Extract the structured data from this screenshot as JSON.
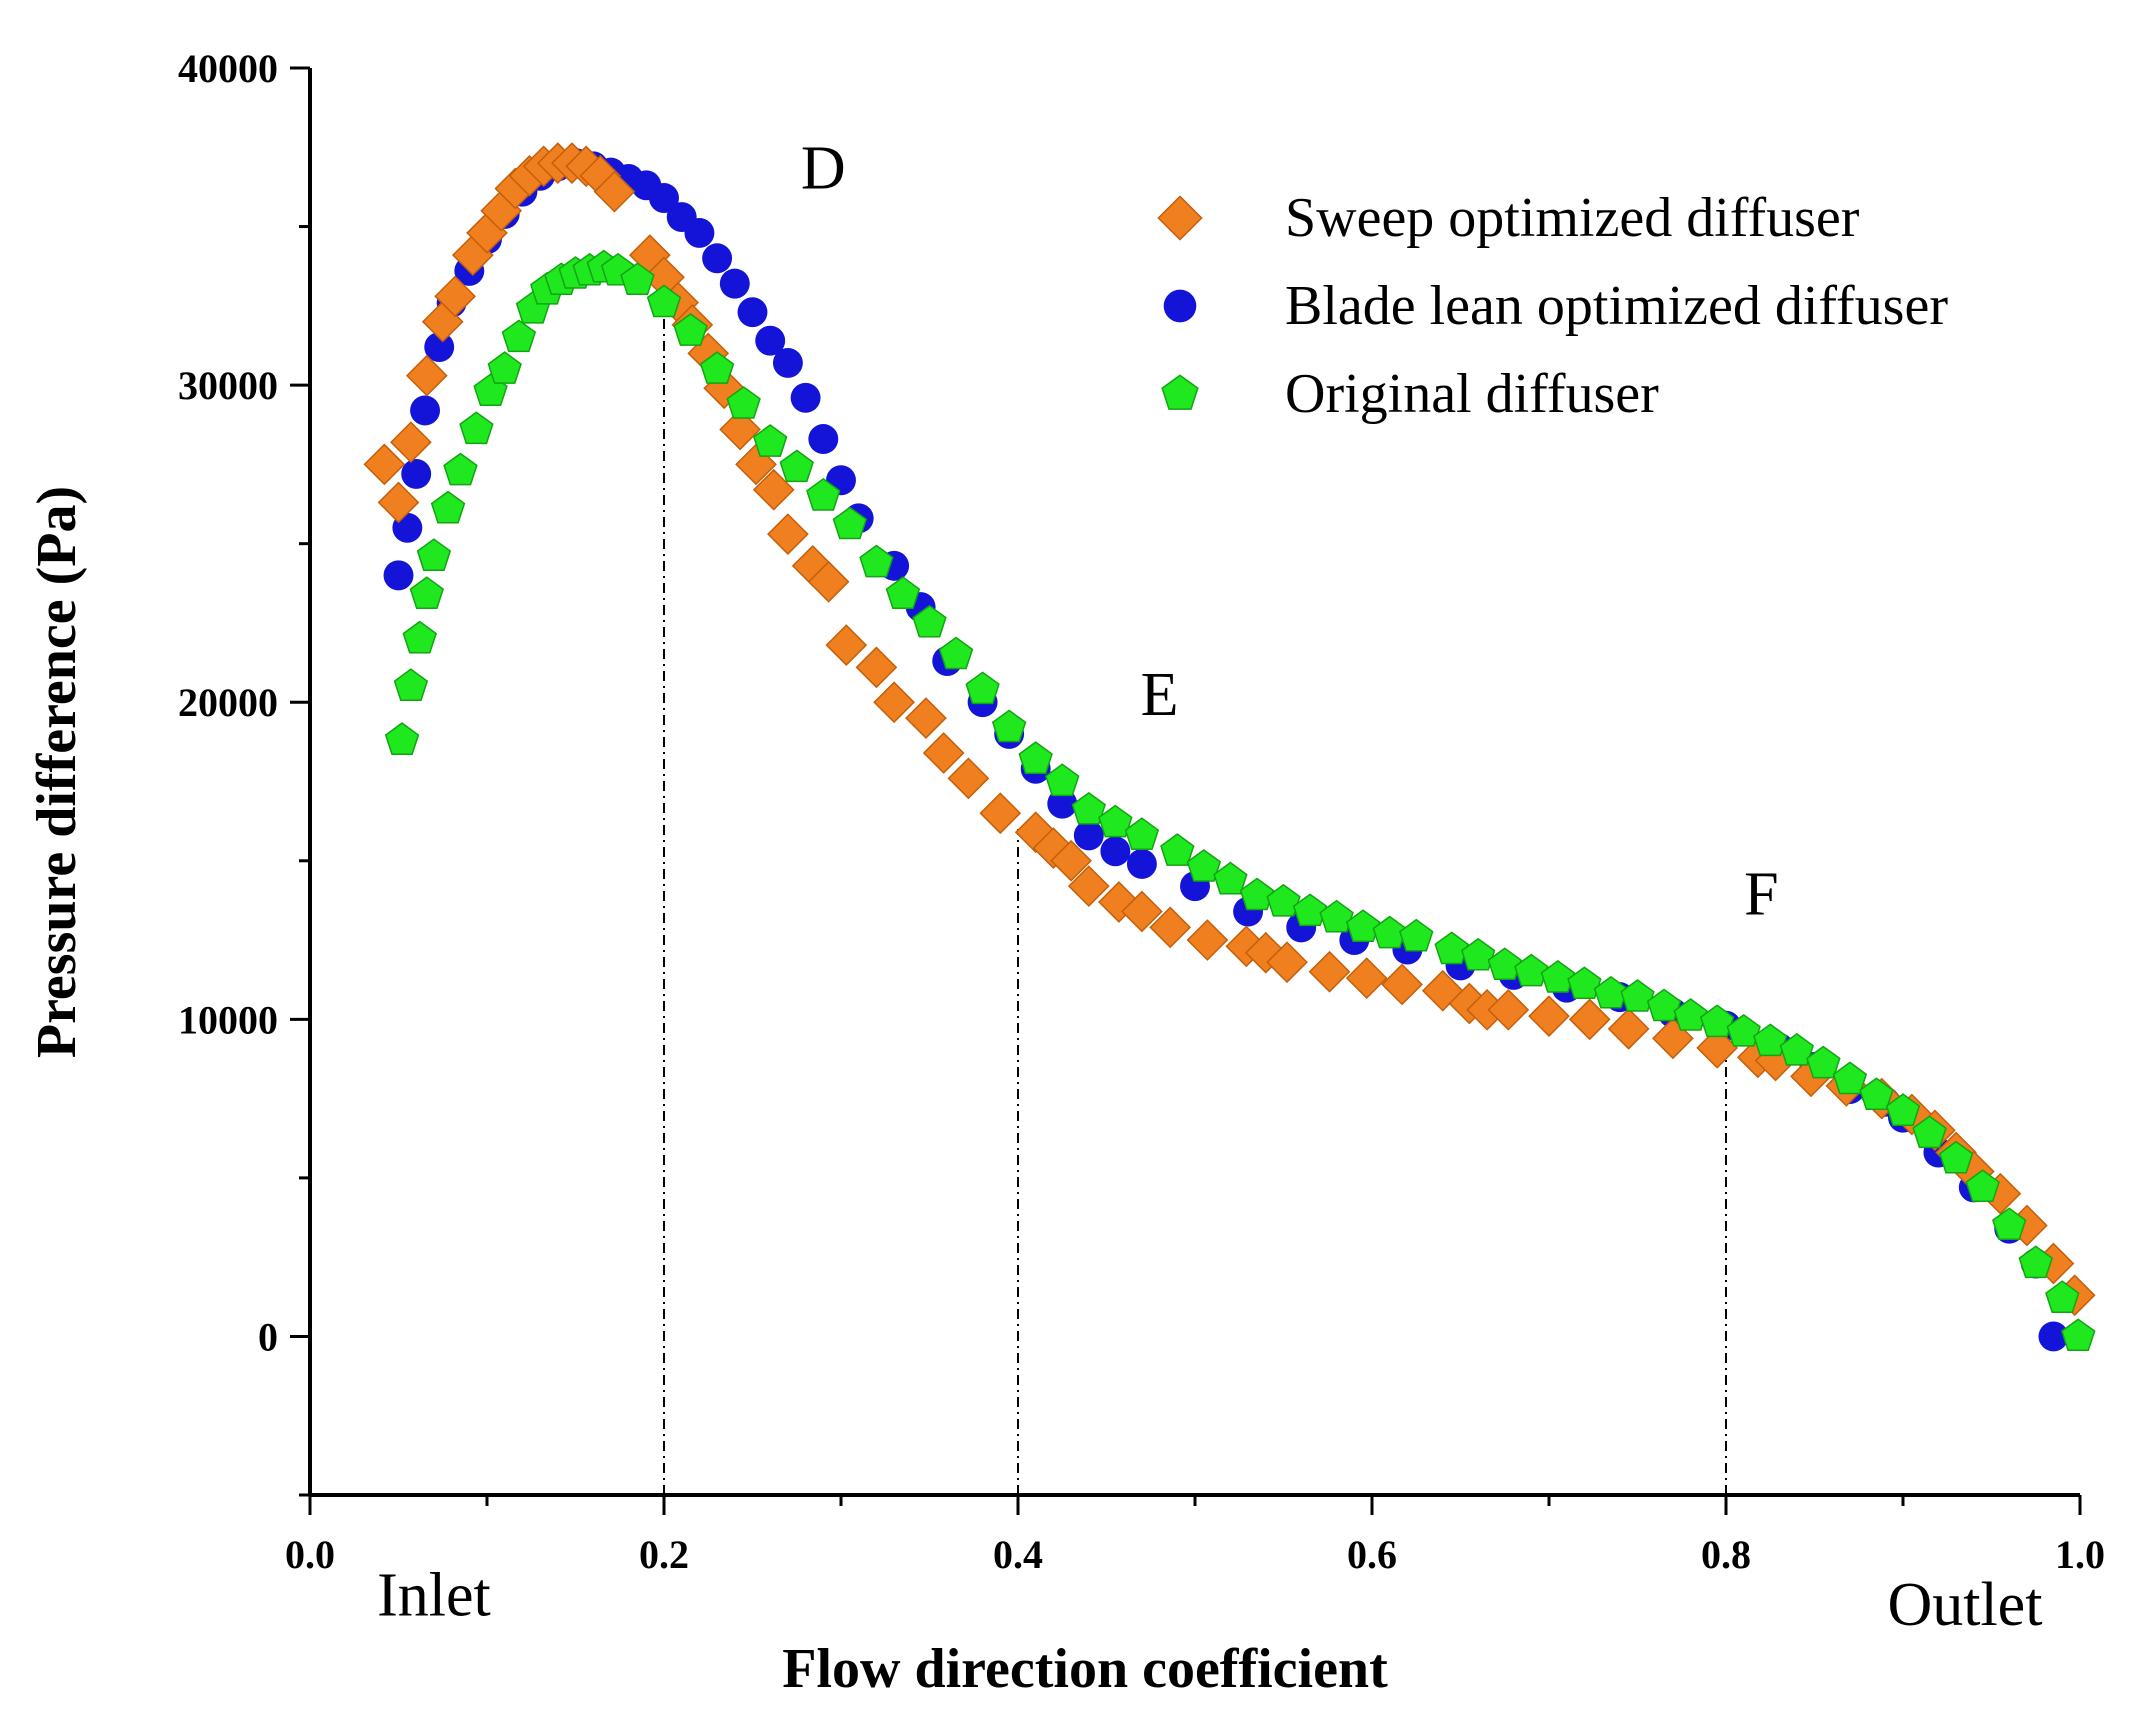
{
  "chart_data": {
    "type": "scatter",
    "xlabel": "Flow direction coefficient",
    "ylabel": "Pressure difference (Pa)",
    "xlim": [
      0.0,
      1.0
    ],
    "ylim": [
      -5000,
      40000
    ],
    "x_ticks": [
      0.0,
      0.2,
      0.4,
      0.6,
      0.8,
      1.0
    ],
    "x_tick_labels": [
      "0.0",
      "0.2",
      "0.4",
      "0.6",
      "0.8",
      "1.0"
    ],
    "y_ticks": [
      0,
      10000,
      20000,
      30000,
      40000
    ],
    "y_tick_labels": [
      "0",
      "10000",
      "20000",
      "30000",
      "40000"
    ],
    "annotations": [
      {
        "text": "Inlet",
        "x": 0.07,
        "y": -8800
      },
      {
        "text": "Outlet",
        "x": 0.935,
        "y": -9100
      },
      {
        "text": "D",
        "x": 0.29,
        "y": 36200
      },
      {
        "text": "E",
        "x": 0.48,
        "y": 19600
      },
      {
        "text": "F",
        "x": 0.82,
        "y": 13300
      }
    ],
    "reference_lines": [
      {
        "x": 0.2,
        "y_top": 32700
      },
      {
        "x": 0.4,
        "y_top": 16000
      },
      {
        "x": 0.8,
        "y_top": 8800
      }
    ],
    "legend": {
      "position": "top-right",
      "entries": [
        {
          "label": "Sweep optimized diffuser",
          "marker": "diamond",
          "color": "#f07f1f"
        },
        {
          "label": "Blade lean optimized diffuser",
          "marker": "circle",
          "color": "#1414d9"
        },
        {
          "label": "Original diffuser",
          "marker": "pentagon",
          "color": "#1fe81f"
        }
      ]
    },
    "series": [
      {
        "name": "Blade lean optimized diffuser",
        "marker": "circle",
        "color": "#1414d9",
        "x": [
          0.05,
          0.055,
          0.06,
          0.065,
          0.073,
          0.08,
          0.09,
          0.1,
          0.11,
          0.12,
          0.13,
          0.14,
          0.15,
          0.16,
          0.17,
          0.18,
          0.19,
          0.2,
          0.21,
          0.22,
          0.23,
          0.24,
          0.25,
          0.26,
          0.27,
          0.28,
          0.29,
          0.3,
          0.31,
          0.33,
          0.345,
          0.36,
          0.38,
          0.395,
          0.41,
          0.425,
          0.44,
          0.455,
          0.47,
          0.5,
          0.53,
          0.56,
          0.59,
          0.62,
          0.65,
          0.68,
          0.71,
          0.74,
          0.77,
          0.8,
          0.83,
          0.85,
          0.87,
          0.89,
          0.9,
          0.92,
          0.94,
          0.96,
          0.975,
          0.985
        ],
        "y": [
          24000,
          25500,
          27200,
          29200,
          31200,
          32600,
          33600,
          34600,
          35400,
          36100,
          36600,
          36900,
          37000,
          36900,
          36700,
          36500,
          36300,
          35900,
          35300,
          34800,
          34000,
          33200,
          32300,
          31400,
          30700,
          29600,
          28300,
          27000,
          25800,
          24300,
          23000,
          21300,
          20000,
          19000,
          17900,
          16800,
          15800,
          15300,
          14900,
          14200,
          13400,
          12900,
          12500,
          12200,
          11700,
          11400,
          11000,
          10700,
          10200,
          9800,
          9100,
          8500,
          7800,
          7400,
          6900,
          5800,
          4700,
          3400,
          2300,
          0
        ]
      },
      {
        "name": "Sweep optimized diffuser",
        "marker": "diamond",
        "color": "#f07f1f",
        "x": [
          0.042,
          0.05,
          0.057,
          0.066,
          0.075,
          0.082,
          0.092,
          0.1,
          0.108,
          0.116,
          0.124,
          0.132,
          0.14,
          0.148,
          0.156,
          0.164,
          0.172,
          0.192,
          0.2,
          0.208,
          0.216,
          0.225,
          0.234,
          0.243,
          0.252,
          0.262,
          0.27,
          0.284,
          0.293,
          0.303,
          0.32,
          0.33,
          0.348,
          0.358,
          0.372,
          0.39,
          0.41,
          0.42,
          0.43,
          0.44,
          0.457,
          0.47,
          0.486,
          0.507,
          0.529,
          0.54,
          0.552,
          0.576,
          0.597,
          0.617,
          0.64,
          0.655,
          0.665,
          0.677,
          0.7,
          0.723,
          0.745,
          0.77,
          0.795,
          0.818,
          0.828,
          0.848,
          0.868,
          0.888,
          0.905,
          0.918,
          0.93,
          0.94,
          0.955,
          0.97,
          0.985,
          0.997
        ],
        "y": [
          27500,
          26300,
          28200,
          30300,
          32000,
          32800,
          34100,
          34800,
          35500,
          36200,
          36600,
          36900,
          37000,
          37000,
          36900,
          36600,
          36100,
          34100,
          33400,
          32600,
          31900,
          31000,
          29900,
          28600,
          27500,
          26700,
          25300,
          24300,
          23800,
          21800,
          21100,
          20000,
          19500,
          18400,
          17600,
          16500,
          15900,
          15400,
          15000,
          14200,
          13700,
          13400,
          12900,
          12500,
          12300,
          12100,
          11800,
          11500,
          11300,
          11100,
          10900,
          10500,
          10300,
          10300,
          10100,
          10000,
          9700,
          9400,
          9100,
          8800,
          8700,
          8200,
          7900,
          7500,
          7000,
          6500,
          5800,
          5200,
          4500,
          3500,
          2300,
          1300
        ]
      },
      {
        "name": "Original diffuser",
        "marker": "pentagon",
        "color": "#1fe81f",
        "x": [
          0.052,
          0.057,
          0.062,
          0.066,
          0.07,
          0.078,
          0.085,
          0.094,
          0.102,
          0.11,
          0.118,
          0.126,
          0.134,
          0.142,
          0.15,
          0.158,
          0.166,
          0.174,
          0.185,
          0.2,
          0.215,
          0.23,
          0.245,
          0.26,
          0.275,
          0.29,
          0.305,
          0.32,
          0.335,
          0.35,
          0.365,
          0.38,
          0.395,
          0.41,
          0.425,
          0.44,
          0.455,
          0.47,
          0.49,
          0.505,
          0.52,
          0.535,
          0.55,
          0.565,
          0.58,
          0.595,
          0.61,
          0.625,
          0.645,
          0.66,
          0.675,
          0.69,
          0.705,
          0.72,
          0.735,
          0.75,
          0.765,
          0.78,
          0.795,
          0.81,
          0.825,
          0.84,
          0.855,
          0.87,
          0.885,
          0.9,
          0.915,
          0.93,
          0.945,
          0.96,
          0.975,
          0.99,
          0.999
        ],
        "y": [
          18800,
          20500,
          22000,
          23400,
          24600,
          26100,
          27300,
          28600,
          29800,
          30500,
          31500,
          32400,
          33000,
          33300,
          33500,
          33600,
          33700,
          33600,
          33300,
          32600,
          31700,
          30500,
          29400,
          28200,
          27400,
          26500,
          25600,
          24400,
          23400,
          22500,
          21500,
          20400,
          19200,
          18200,
          17500,
          16600,
          16200,
          15800,
          15300,
          14800,
          14400,
          13900,
          13700,
          13400,
          13200,
          12900,
          12700,
          12600,
          12200,
          12000,
          11700,
          11500,
          11300,
          11100,
          10800,
          10700,
          10400,
          10100,
          9900,
          9600,
          9300,
          9000,
          8600,
          8100,
          7600,
          7100,
          6400,
          5600,
          4700,
          3500,
          2300,
          1200,
          0
        ]
      }
    ]
  }
}
